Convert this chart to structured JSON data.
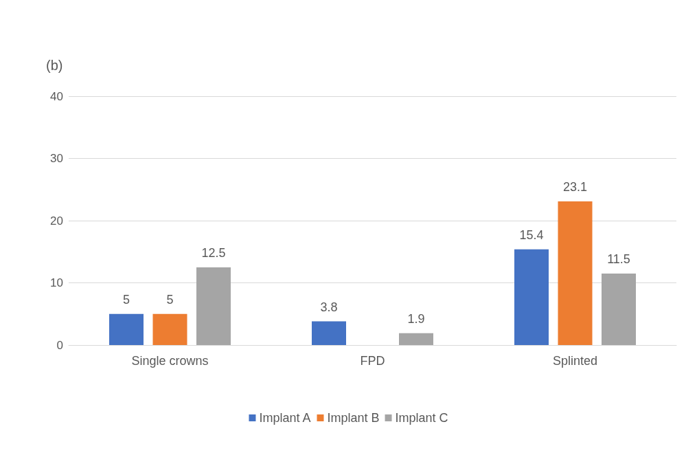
{
  "chart_data": {
    "type": "bar",
    "title": "(b)",
    "categories": [
      "Single crowns",
      "FPD",
      "Splinted"
    ],
    "series": [
      {
        "name": "Implant A",
        "color": "#4472c4",
        "values": [
          5,
          3.8,
          15.4
        ]
      },
      {
        "name": "Implant B",
        "color": "#ed7d31",
        "values": [
          5,
          null,
          23.1
        ]
      },
      {
        "name": "Implant C",
        "color": "#a5a5a5",
        "values": [
          12.5,
          1.9,
          11.5
        ]
      }
    ],
    "ylim": [
      0,
      40
    ],
    "yticks": [
      0,
      10,
      20,
      30,
      40
    ],
    "grid": "y",
    "legend": "bottom",
    "data_labels": true
  }
}
